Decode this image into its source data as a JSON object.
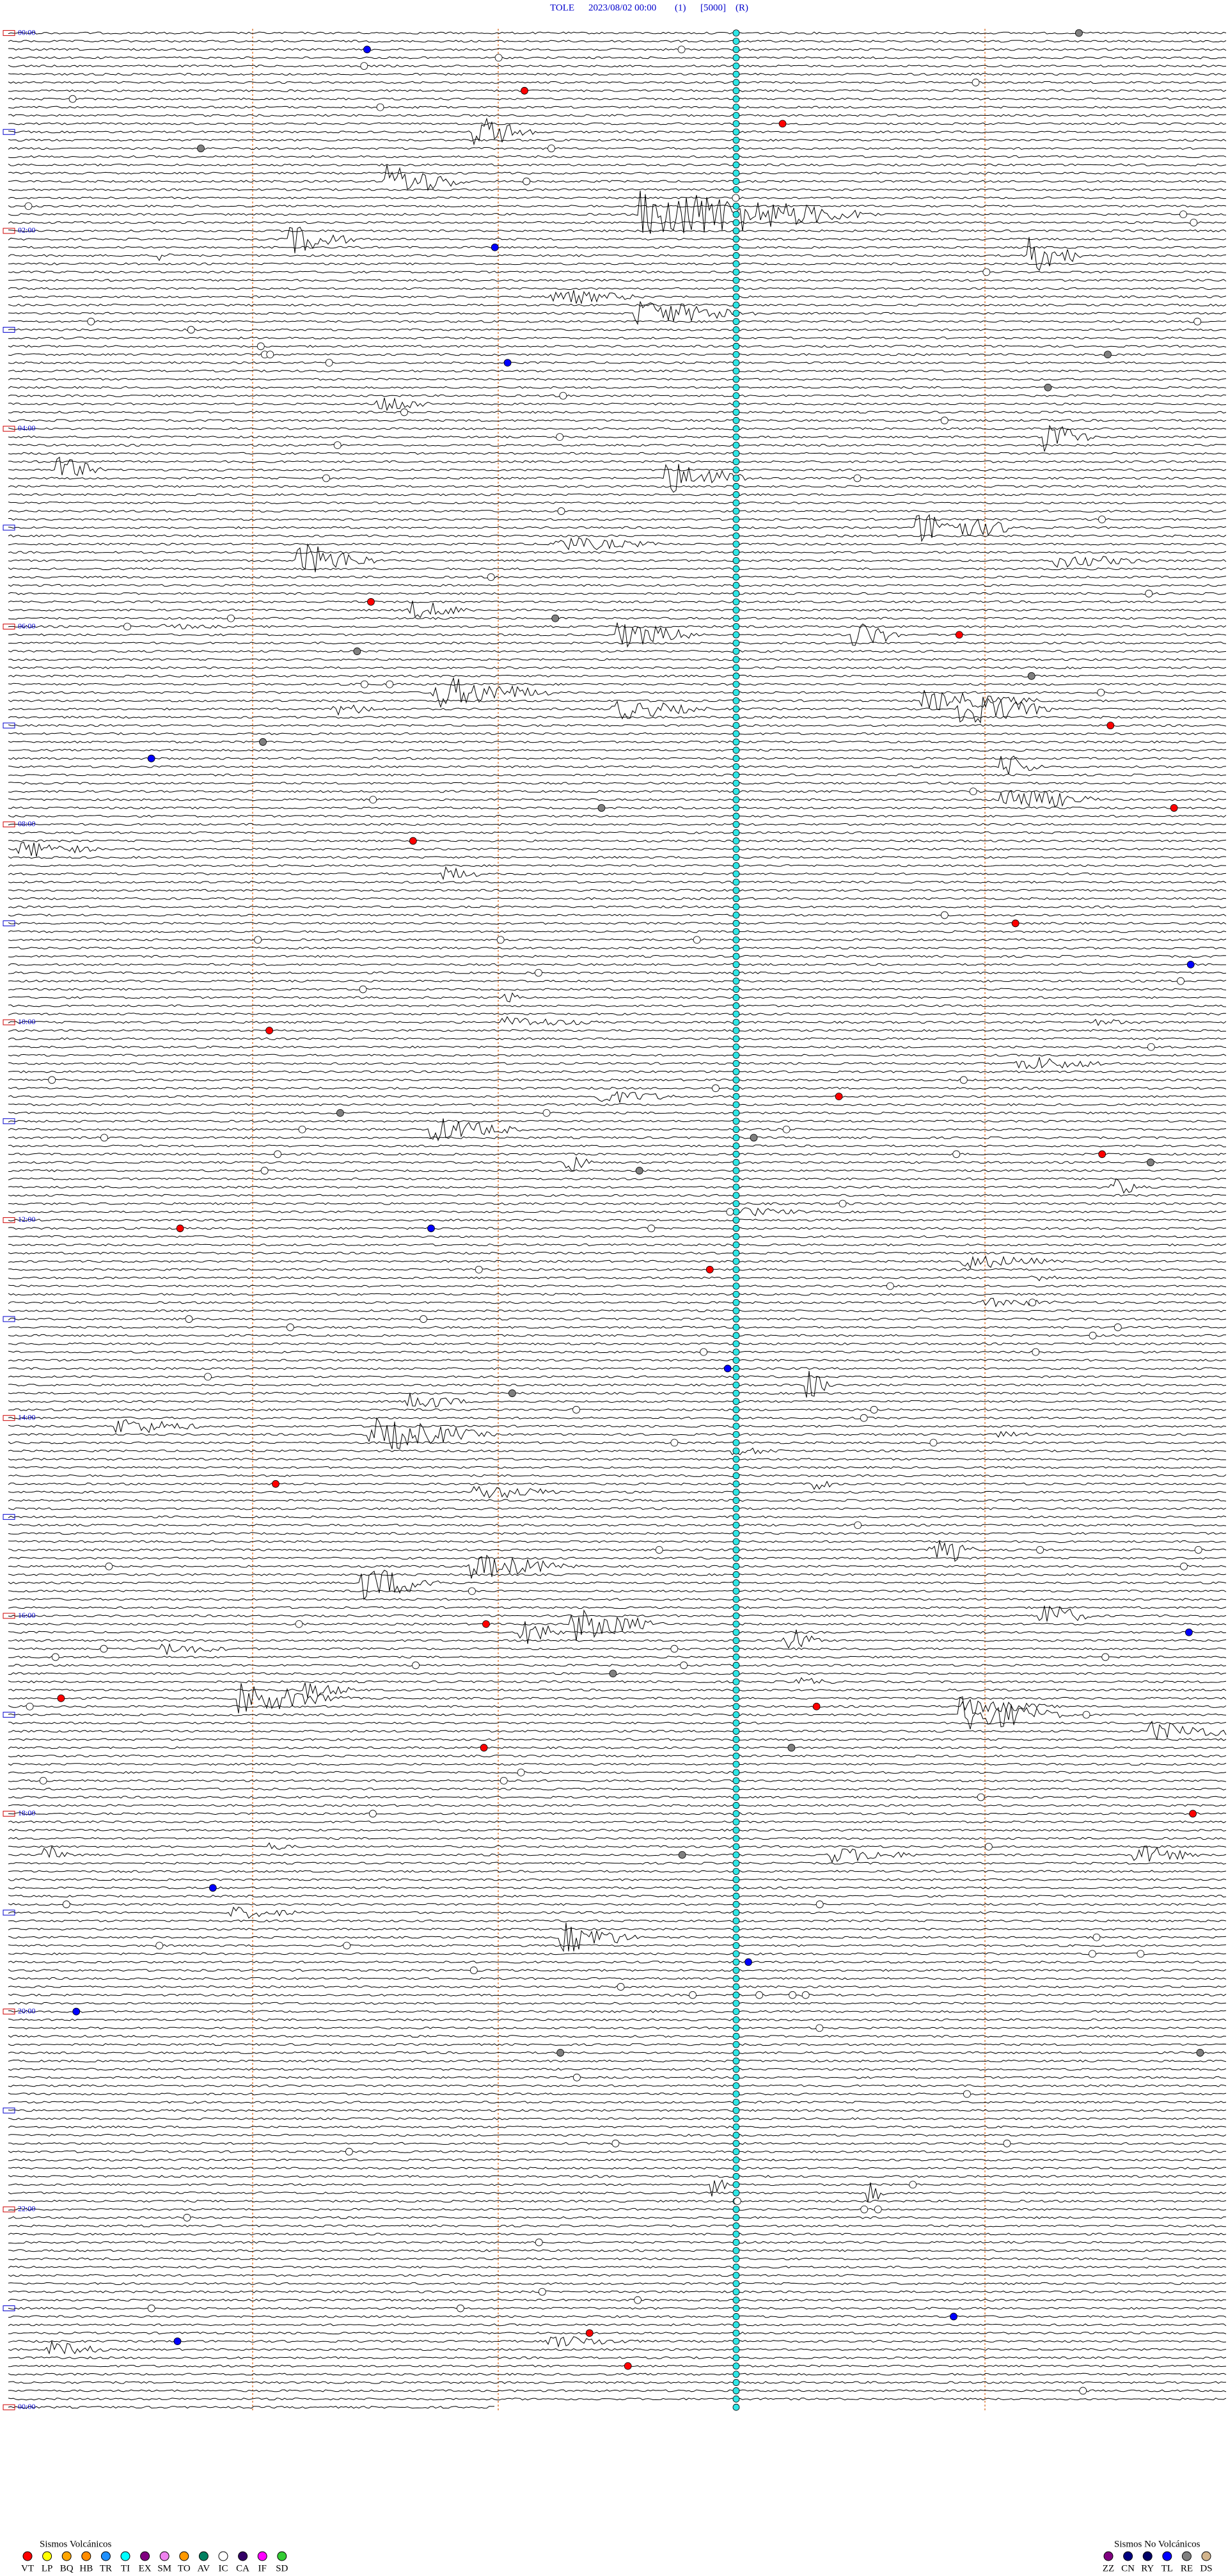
{
  "header": {
    "station": "TOLE",
    "datetime": "2023/08/02 00:00",
    "channel": "(1)",
    "scale": "[5000]",
    "mode": "(R)"
  },
  "hour_labels": [
    "00:00",
    "02:00",
    "04:00",
    "06:00",
    "08:00",
    "10:00",
    "12:00",
    "14:00",
    "16:00",
    "18:00",
    "20:00",
    "22:00",
    "00:00"
  ],
  "legend_volcanic": {
    "title": "Sismos Volcánicos",
    "codes": [
      "VT",
      "LP",
      "BQ",
      "HB",
      "TR",
      "TI",
      "EX",
      "SM",
      "TO",
      "AV",
      "IC",
      "CA",
      "IF",
      "SD"
    ]
  },
  "legend_non_volcanic": {
    "title": "Sismos No Volcánicos",
    "codes": [
      "ZZ",
      "CN",
      "RY",
      "TL",
      "RE",
      "DS"
    ]
  }
}
